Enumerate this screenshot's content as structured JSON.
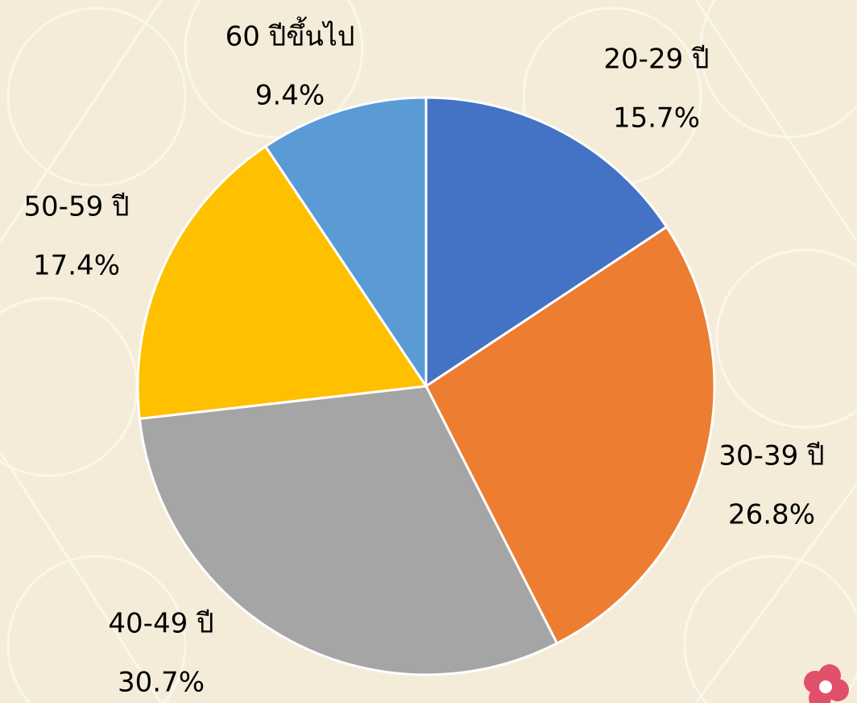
{
  "chart_data": {
    "type": "pie",
    "categories": [
      "20-29 ปี",
      "30-39 ปี",
      "40-49 ปี",
      "50-59 ปี",
      "60 ปีขึ้นไป"
    ],
    "values": [
      15.7,
      26.8,
      30.7,
      17.4,
      9.4
    ],
    "value_labels": [
      "15.7%",
      "26.8%",
      "30.7%",
      "17.4%",
      "9.4%"
    ],
    "colors": [
      "#4472c4",
      "#ed7d31",
      "#a5a5a5",
      "#ffc000",
      "#5b9bd5"
    ]
  }
}
